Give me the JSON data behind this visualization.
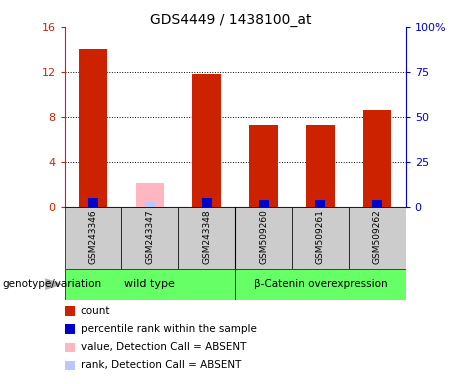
{
  "title": "GDS4449 / 1438100_at",
  "samples": [
    "GSM243346",
    "GSM243347",
    "GSM243348",
    "GSM509260",
    "GSM509261",
    "GSM509262"
  ],
  "count_values": [
    14.0,
    null,
    11.8,
    7.3,
    7.3,
    8.6
  ],
  "rank_values": [
    5.2,
    null,
    5.0,
    4.0,
    4.0,
    4.0
  ],
  "absent_value": [
    null,
    2.2,
    null,
    null,
    null,
    null
  ],
  "absent_rank": [
    null,
    2.8,
    null,
    null,
    null,
    null
  ],
  "ylim_left": [
    0,
    16
  ],
  "ylim_right": [
    0,
    100
  ],
  "yticks_left": [
    0,
    4,
    8,
    12,
    16
  ],
  "yticks_right": [
    0,
    25,
    50,
    75,
    100
  ],
  "yticklabels_right": [
    "0",
    "25",
    "50",
    "75",
    "100%"
  ],
  "bar_color_count": "#cc2200",
  "bar_color_rank": "#0000cc",
  "bar_color_absent_val": "#ffb6c1",
  "bar_color_absent_rank": "#b8c8ff",
  "bar_width": 0.5,
  "bg_color": "#cccccc",
  "plot_bg": "white",
  "group1_label": "wild type",
  "group2_label": "β-Catenin overexpression",
  "group_color": "#66ff66",
  "legend_entries": [
    {
      "color": "#cc2200",
      "label": "count"
    },
    {
      "color": "#0000cc",
      "label": "percentile rank within the sample"
    },
    {
      "color": "#ffb6c1",
      "label": "value, Detection Call = ABSENT"
    },
    {
      "color": "#b8c8ff",
      "label": "rank, Detection Call = ABSENT"
    }
  ],
  "genotype_label": "genotype/variation"
}
